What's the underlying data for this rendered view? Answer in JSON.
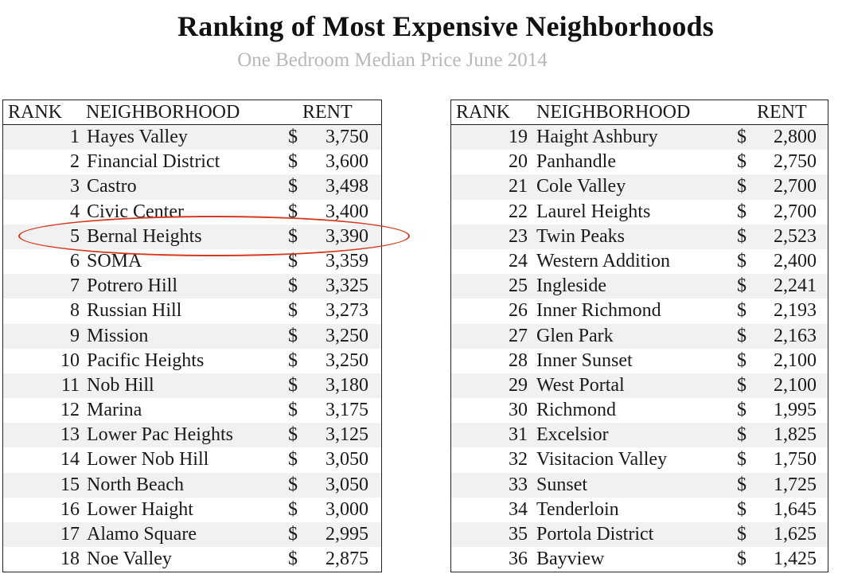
{
  "title": "Ranking of Most Expensive Neighborhoods",
  "subtitle": "One Bedroom Median Price June 2014",
  "columns": {
    "rank": "RANK",
    "neighborhood": "NEIGHBORHOOD",
    "rent": "RENT"
  },
  "currency_symbol": "$",
  "highlight": {
    "rank": "5",
    "neighborhood": "Bernal Heights",
    "color": "#d63a1e"
  },
  "tables": [
    {
      "rows": [
        {
          "rank": "1",
          "name": "Hayes Valley",
          "rent": "3,750"
        },
        {
          "rank": "2",
          "name": "Financial District",
          "rent": "3,600"
        },
        {
          "rank": "3",
          "name": "Castro",
          "rent": "3,498"
        },
        {
          "rank": "4",
          "name": "Civic Center",
          "rent": "3,400"
        },
        {
          "rank": "5",
          "name": "Bernal Heights",
          "rent": "3,390"
        },
        {
          "rank": "6",
          "name": "SOMA",
          "rent": "3,359"
        },
        {
          "rank": "7",
          "name": "Potrero Hill",
          "rent": "3,325"
        },
        {
          "rank": "8",
          "name": "Russian Hill",
          "rent": "3,273"
        },
        {
          "rank": "9",
          "name": "Mission",
          "rent": "3,250"
        },
        {
          "rank": "10",
          "name": "Pacific Heights",
          "rent": "3,250"
        },
        {
          "rank": "11",
          "name": "Nob Hill",
          "rent": "3,180"
        },
        {
          "rank": "12",
          "name": "Marina",
          "rent": "3,175"
        },
        {
          "rank": "13",
          "name": "Lower Pac Heights",
          "rent": "3,125"
        },
        {
          "rank": "14",
          "name": "Lower Nob Hill",
          "rent": "3,050"
        },
        {
          "rank": "15",
          "name": "North Beach",
          "rent": "3,050"
        },
        {
          "rank": "16",
          "name": "Lower Haight",
          "rent": "3,000"
        },
        {
          "rank": "17",
          "name": "Alamo Square",
          "rent": "2,995"
        },
        {
          "rank": "18",
          "name": "Noe Valley",
          "rent": "2,875"
        }
      ]
    },
    {
      "rows": [
        {
          "rank": "19",
          "name": "Haight Ashbury",
          "rent": "2,800"
        },
        {
          "rank": "20",
          "name": "Panhandle",
          "rent": "2,750"
        },
        {
          "rank": "21",
          "name": "Cole Valley",
          "rent": "2,700"
        },
        {
          "rank": "22",
          "name": "Laurel Heights",
          "rent": "2,700"
        },
        {
          "rank": "23",
          "name": "Twin Peaks",
          "rent": "2,523"
        },
        {
          "rank": "24",
          "name": "Western Addition",
          "rent": "2,400"
        },
        {
          "rank": "25",
          "name": "Ingleside",
          "rent": "2,241"
        },
        {
          "rank": "26",
          "name": "Inner Richmond",
          "rent": "2,193"
        },
        {
          "rank": "27",
          "name": "Glen Park",
          "rent": "2,163"
        },
        {
          "rank": "28",
          "name": "Inner Sunset",
          "rent": "2,100"
        },
        {
          "rank": "29",
          "name": "West Portal",
          "rent": "2,100"
        },
        {
          "rank": "30",
          "name": "Richmond",
          "rent": "1,995"
        },
        {
          "rank": "31",
          "name": "Excelsior",
          "rent": "1,825"
        },
        {
          "rank": "32",
          "name": "Visitacion Valley",
          "rent": "1,750"
        },
        {
          "rank": "33",
          "name": "Sunset",
          "rent": "1,725"
        },
        {
          "rank": "34",
          "name": "Tenderloin",
          "rent": "1,645"
        },
        {
          "rank": "35",
          "name": "Portola District",
          "rent": "1,625"
        },
        {
          "rank": "36",
          "name": "Bayview",
          "rent": "1,425"
        }
      ]
    }
  ]
}
